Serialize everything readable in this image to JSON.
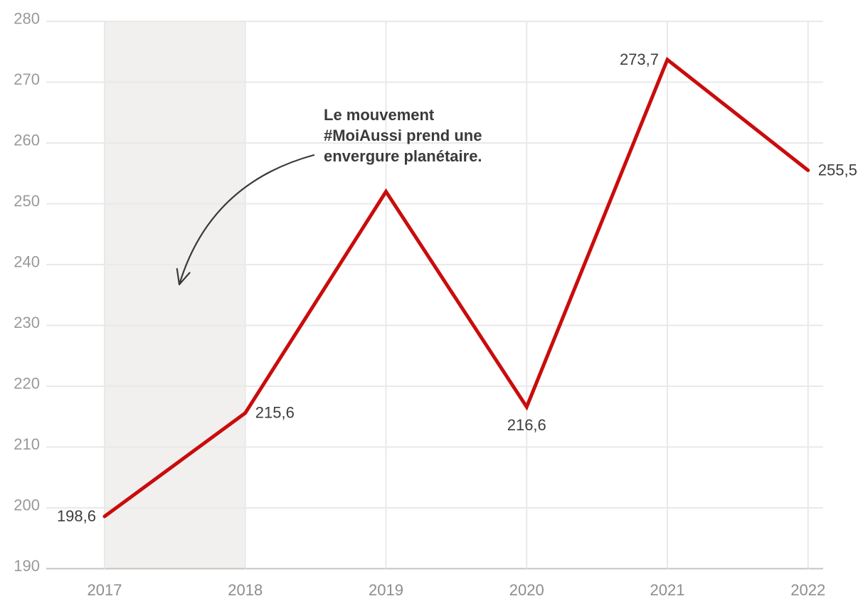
{
  "chart_data": {
    "type": "line",
    "title": "",
    "xlabel": "",
    "ylabel": "",
    "x": [
      2017,
      2018,
      2019,
      2020,
      2021,
      2022
    ],
    "x_tick_labels": [
      "2017",
      "2018",
      "2019",
      "2020",
      "2021",
      "2022"
    ],
    "y_ticks": [
      280,
      270,
      260,
      250,
      240,
      230,
      220,
      210,
      200,
      190
    ],
    "ylim": [
      190,
      280
    ],
    "series": [
      {
        "name": "serie",
        "values": [
          198.6,
          215.6,
          252.0,
          216.6,
          273.7,
          255.5
        ]
      }
    ],
    "point_labels": [
      {
        "x": 2017,
        "value": 198.6,
        "text": "198,6",
        "pos": "left"
      },
      {
        "x": 2018,
        "value": 215.6,
        "text": "215,6",
        "pos": "right"
      },
      {
        "x": 2020,
        "value": 216.6,
        "text": "216,6",
        "pos": "below"
      },
      {
        "x": 2021,
        "value": 273.7,
        "text": "273,7",
        "pos": "left"
      },
      {
        "x": 2022,
        "value": 255.5,
        "text": "255,5",
        "pos": "right"
      }
    ],
    "band": {
      "x_from": 2017,
      "x_to": 2018
    },
    "annotation": {
      "lines": [
        "Le mouvement",
        "#MoiAussi prend une",
        "envergure planétaire."
      ]
    },
    "grid": {
      "horizontal": true,
      "vertical": true
    },
    "legend_position": "none",
    "colors": {
      "line": "#c90c0c",
      "band": "#f1f0ee",
      "grid": "#e9e9e9",
      "axis": "#c4c4c4",
      "y_tick": "#999999",
      "x_tick": "#8d8d8d",
      "point_label": "#3d3d3d",
      "annotation": "#3a3a3a"
    }
  }
}
